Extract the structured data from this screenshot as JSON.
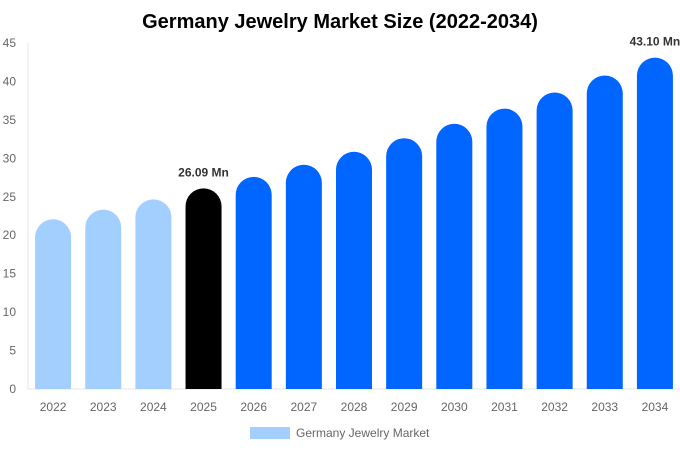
{
  "chart_data": {
    "type": "bar",
    "title": "Germany Jewelry Market Size (2022-2034)",
    "xlabel": "",
    "ylabel": "",
    "ylim": [
      0,
      45
    ],
    "yticks": [
      0,
      5,
      10,
      15,
      20,
      25,
      30,
      35,
      40,
      45
    ],
    "grid": false,
    "legend_placement": "bottom",
    "categories": [
      "2022",
      "2023",
      "2024",
      "2025",
      "2026",
      "2027",
      "2028",
      "2029",
      "2030",
      "2031",
      "2032",
      "2033",
      "2034"
    ],
    "series": [
      {
        "name": "Germany Jewelry Market",
        "values": [
          22.07,
          23.33,
          24.67,
          26.09,
          27.59,
          29.17,
          30.85,
          32.62,
          34.49,
          36.47,
          38.56,
          40.77,
          43.1
        ]
      }
    ],
    "bar_colors": [
      "#a3cfff",
      "#a3cfff",
      "#a3cfff",
      "#000000",
      "#0066ff",
      "#0066ff",
      "#0066ff",
      "#0066ff",
      "#0066ff",
      "#0066ff",
      "#0066ff",
      "#0066ff",
      "#0066ff"
    ],
    "legend_color": "#a3cfff",
    "annotations": [
      {
        "category": "2025",
        "text": "26.09 Mn"
      },
      {
        "category": "2034",
        "text": "43.10 Mn"
      }
    ]
  }
}
